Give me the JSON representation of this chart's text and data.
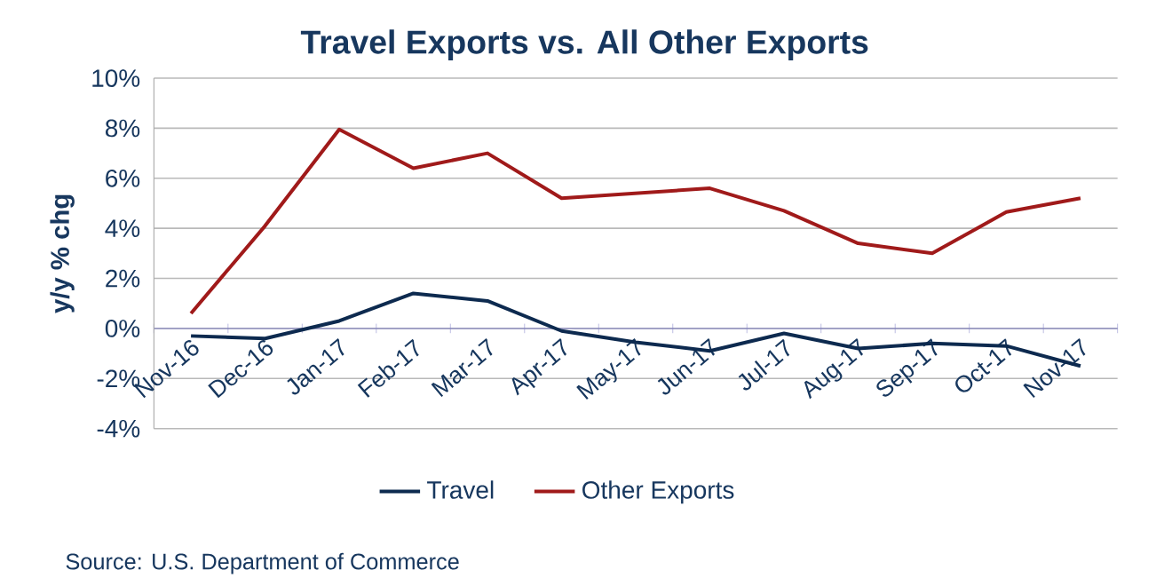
{
  "chart_data": {
    "type": "line",
    "title": "Travel Exports vs. All Other Exports",
    "ylabel": "y/y % chg",
    "categories": [
      "Nov-16",
      "Dec-16",
      "Jan-17",
      "Feb-17",
      "Mar-17",
      "Apr-17",
      "May-17",
      "Jun-17",
      "Jul-17",
      "Aug-17",
      "Sep-17",
      "Oct-17",
      "Nov-17"
    ],
    "series": [
      {
        "name": "Travel",
        "color": "#0d2a4f",
        "values": [
          -0.3,
          -0.4,
          0.3,
          1.4,
          1.1,
          -0.1,
          -0.55,
          -0.9,
          -0.2,
          -0.8,
          -0.6,
          -0.7,
          -1.5
        ]
      },
      {
        "name": "Other Exports",
        "color": "#a01a1a",
        "values": [
          0.6,
          4.1,
          7.95,
          6.4,
          7.0,
          5.2,
          5.4,
          5.6,
          4.7,
          3.4,
          3.0,
          4.65,
          5.2
        ]
      }
    ],
    "ylim": [
      -4,
      10
    ],
    "yticks": [
      {
        "value": -4,
        "label": "-4%"
      },
      {
        "value": -2,
        "label": "-2%"
      },
      {
        "value": 0,
        "label": "0%"
      },
      {
        "value": 2,
        "label": "2%"
      },
      {
        "value": 4,
        "label": "4%"
      },
      {
        "value": 6,
        "label": "6%"
      },
      {
        "value": 8,
        "label": "8%"
      },
      {
        "value": 10,
        "label": "10%"
      }
    ],
    "grid": "y",
    "legend": "bottom",
    "marker": "none",
    "line_style": "solid",
    "annotations": [
      "Source: U.S. Department of Commerce"
    ]
  }
}
